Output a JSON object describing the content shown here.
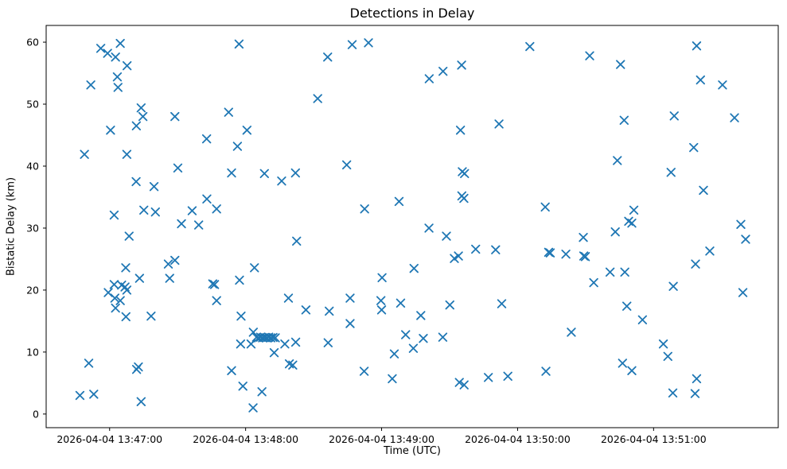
{
  "title": "Detections in Delay",
  "colors": {
    "marker": "#1f77b4",
    "axis": "#000000",
    "background": "#ffffff"
  },
  "chart_data": {
    "type": "scatter",
    "marker": "x",
    "title": "Detections in Delay",
    "xlabel": "Time (UTC)",
    "ylabel": "Bistatic Delay (km)",
    "x_unit": "seconds after 2026-04-04 13:47:00 UTC",
    "xlim_s": [
      -28,
      295
    ],
    "ylim": [
      -2.2,
      62.7
    ],
    "grid": false,
    "legend": "none",
    "x_ticks": [
      {
        "offset_s": 0,
        "label": "2026-04-04 13:47:00"
      },
      {
        "offset_s": 60,
        "label": "2026-04-04 13:48:00"
      },
      {
        "offset_s": 120,
        "label": "2026-04-04 13:49:00"
      },
      {
        "offset_s": 180,
        "label": "2026-04-04 13:50:00"
      },
      {
        "offset_s": 240,
        "label": "2026-04-04 13:51:00"
      }
    ],
    "y_ticks": [
      0,
      10,
      20,
      30,
      40,
      50,
      60
    ],
    "points": [
      [
        -3.9,
        59.0
      ],
      [
        -0.9,
        58.2
      ],
      [
        2.6,
        57.6
      ],
      [
        4.7,
        59.8
      ],
      [
        7.7,
        56.2
      ],
      [
        3.4,
        54.4
      ],
      [
        -8.3,
        53.1
      ],
      [
        3.7,
        52.7
      ],
      [
        13.9,
        49.4
      ],
      [
        14.7,
        48.0
      ],
      [
        11.8,
        46.5
      ],
      [
        28.8,
        48.0
      ],
      [
        52.5,
        48.7
      ],
      [
        57.1,
        59.7
      ],
      [
        0.4,
        45.8
      ],
      [
        60.6,
        45.8
      ],
      [
        42.8,
        44.4
      ],
      [
        56.4,
        43.2
      ],
      [
        -11.1,
        41.9
      ],
      [
        7.6,
        41.9
      ],
      [
        30.1,
        39.7
      ],
      [
        53.8,
        38.9
      ],
      [
        68.3,
        38.8
      ],
      [
        75.9,
        37.6
      ],
      [
        11.7,
        37.5
      ],
      [
        19.6,
        36.7
      ],
      [
        42.9,
        34.7
      ],
      [
        47.2,
        33.1
      ],
      [
        15.1,
        32.9
      ],
      [
        20.2,
        32.6
      ],
      [
        36.4,
        32.8
      ],
      [
        2.0,
        32.1
      ],
      [
        31.7,
        30.7
      ],
      [
        39.3,
        30.5
      ],
      [
        107.0,
        59.6
      ],
      [
        114.2,
        59.9
      ],
      [
        185.4,
        59.3
      ],
      [
        96.2,
        57.6
      ],
      [
        155.3,
        56.3
      ],
      [
        147.1,
        55.3
      ],
      [
        141.0,
        54.1
      ],
      [
        91.8,
        50.9
      ],
      [
        171.8,
        46.8
      ],
      [
        154.8,
        45.8
      ],
      [
        104.6,
        40.2
      ],
      [
        82.0,
        38.9
      ],
      [
        155.6,
        39.1
      ],
      [
        156.6,
        38.8
      ],
      [
        155.4,
        35.2
      ],
      [
        156.3,
        34.8
      ],
      [
        127.7,
        34.3
      ],
      [
        112.5,
        33.1
      ],
      [
        259.0,
        59.4
      ],
      [
        211.8,
        57.8
      ],
      [
        225.4,
        56.4
      ],
      [
        260.7,
        53.9
      ],
      [
        270.4,
        53.1
      ],
      [
        227.0,
        47.4
      ],
      [
        249.1,
        48.1
      ],
      [
        275.7,
        47.8
      ],
      [
        257.7,
        43.0
      ],
      [
        224.0,
        40.9
      ],
      [
        247.7,
        39.0
      ],
      [
        262.0,
        36.1
      ],
      [
        192.2,
        33.4
      ],
      [
        231.3,
        32.9
      ],
      [
        229.0,
        31.1
      ],
      [
        230.4,
        30.8
      ],
      [
        278.5,
        30.6
      ],
      [
        8.6,
        28.7
      ],
      [
        25.9,
        24.2
      ],
      [
        28.8,
        24.8
      ],
      [
        7.1,
        23.6
      ],
      [
        63.9,
        23.6
      ],
      [
        13.2,
        21.9
      ],
      [
        26.5,
        21.9
      ],
      [
        45.5,
        21.0
      ],
      [
        46.3,
        20.9
      ],
      [
        57.3,
        21.6
      ],
      [
        2.0,
        20.9
      ],
      [
        5.3,
        20.8
      ],
      [
        6.8,
        20.5
      ],
      [
        7.6,
        20.0
      ],
      [
        -0.6,
        19.6
      ],
      [
        2.3,
        18.7
      ],
      [
        4.7,
        18.3
      ],
      [
        47.2,
        18.3
      ],
      [
        78.9,
        18.7
      ],
      [
        2.6,
        17.1
      ],
      [
        7.2,
        15.7
      ],
      [
        18.3,
        15.8
      ],
      [
        58.0,
        15.8
      ],
      [
        63.4,
        13.2
      ],
      [
        64.8,
        12.4
      ],
      [
        65.7,
        12.3
      ],
      [
        66.6,
        12.4
      ],
      [
        67.5,
        12.3
      ],
      [
        68.4,
        12.35
      ],
      [
        69.3,
        12.3
      ],
      [
        70.2,
        12.4
      ],
      [
        71.1,
        12.3
      ],
      [
        72.1,
        12.35
      ],
      [
        73.1,
        12.3
      ],
      [
        57.8,
        11.3
      ],
      [
        62.4,
        11.3
      ],
      [
        77.3,
        11.3
      ],
      [
        82.1,
        11.6
      ],
      [
        72.6,
        9.9
      ],
      [
        -9.2,
        8.2
      ],
      [
        79.3,
        8.1
      ],
      [
        80.8,
        7.9
      ],
      [
        11.9,
        7.2
      ],
      [
        12.7,
        7.6
      ],
      [
        53.8,
        7.0
      ],
      [
        58.8,
        4.5
      ],
      [
        67.2,
        3.6
      ],
      [
        -13.1,
        3.0
      ],
      [
        -7.0,
        3.2
      ],
      [
        13.9,
        2.0
      ],
      [
        63.3,
        1.0
      ],
      [
        140.9,
        30.0
      ],
      [
        148.6,
        28.7
      ],
      [
        82.5,
        27.9
      ],
      [
        161.5,
        26.6
      ],
      [
        170.3,
        26.5
      ],
      [
        152.1,
        25.1
      ],
      [
        153.9,
        25.5
      ],
      [
        134.3,
        23.5
      ],
      [
        120.2,
        22.0
      ],
      [
        106.1,
        18.7
      ],
      [
        119.7,
        18.3
      ],
      [
        128.4,
        17.9
      ],
      [
        86.6,
        16.8
      ],
      [
        96.9,
        16.6
      ],
      [
        120.0,
        16.8
      ],
      [
        150.1,
        17.6
      ],
      [
        173.0,
        17.8
      ],
      [
        137.3,
        15.9
      ],
      [
        106.1,
        14.6
      ],
      [
        130.6,
        12.8
      ],
      [
        138.4,
        12.2
      ],
      [
        147.0,
        12.4
      ],
      [
        96.4,
        11.5
      ],
      [
        134.0,
        10.6
      ],
      [
        125.6,
        9.7
      ],
      [
        112.3,
        6.9
      ],
      [
        124.7,
        5.7
      ],
      [
        154.3,
        5.1
      ],
      [
        156.4,
        4.7
      ],
      [
        167.1,
        5.9
      ],
      [
        175.7,
        6.1
      ],
      [
        223.1,
        29.4
      ],
      [
        209.0,
        28.5
      ],
      [
        280.6,
        28.2
      ],
      [
        193.7,
        26.1
      ],
      [
        194.4,
        26.0
      ],
      [
        201.3,
        25.8
      ],
      [
        209.2,
        25.5
      ],
      [
        209.9,
        25.4
      ],
      [
        264.8,
        26.3
      ],
      [
        258.5,
        24.2
      ],
      [
        220.8,
        22.9
      ],
      [
        227.3,
        22.9
      ],
      [
        213.6,
        21.2
      ],
      [
        248.7,
        20.6
      ],
      [
        279.4,
        19.6
      ],
      [
        228.2,
        17.4
      ],
      [
        235.1,
        15.2
      ],
      [
        203.7,
        13.2
      ],
      [
        244.3,
        11.3
      ],
      [
        246.3,
        9.3
      ],
      [
        226.3,
        8.2
      ],
      [
        230.4,
        7.0
      ],
      [
        192.5,
        6.9
      ],
      [
        259.0,
        5.7
      ],
      [
        248.5,
        3.4
      ],
      [
        258.3,
        3.3
      ]
    ]
  }
}
